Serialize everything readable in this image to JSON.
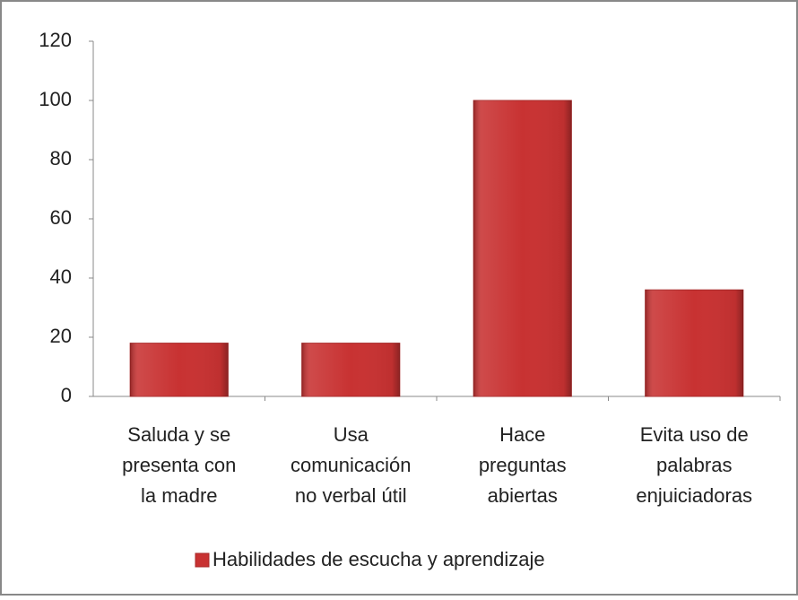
{
  "chart_data": {
    "type": "bar",
    "categories": [
      [
        "Saluda y se",
        "presenta con",
        "la madre"
      ],
      [
        "Usa",
        "comunicación",
        "no verbal útil"
      ],
      [
        "Hace",
        "preguntas",
        "abiertas"
      ],
      [
        "Evita uso de",
        "palabras",
        "enjuiciadoras"
      ]
    ],
    "series": [
      {
        "name": "Habilidades de escucha y aprendizaje",
        "color": "#c83232",
        "values": [
          18,
          18,
          100,
          36
        ]
      }
    ],
    "ylim": [
      0,
      120
    ],
    "yticks": [
      0,
      20,
      40,
      60,
      80,
      100,
      120
    ],
    "grid": false,
    "legend": "bottom"
  }
}
